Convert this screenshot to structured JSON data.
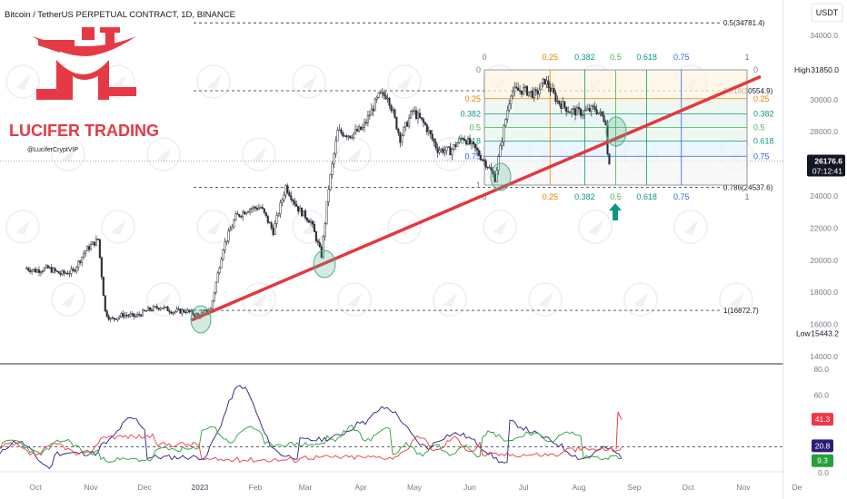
{
  "header": {
    "title": "Bitcoin / TetherUS PERPETUAL CONTRACT, 1D, BINANCE",
    "currency": "USDT"
  },
  "branding": {
    "logo_text": "LUCIFER TRADING",
    "handle": "@LuciferCryptVIP"
  },
  "colors": {
    "candle": "#2a2e39",
    "trendline": "#e0393e",
    "fib0": "#787b86",
    "fib025": "#f57c00",
    "fib0382": "#089981",
    "fib05": "#4caf50",
    "fib0618": "#089981",
    "fib075": "#2962ff",
    "fib1": "#787b86",
    "ellipse": "#4caf87",
    "arrow": "#089981",
    "dmi_plus": "#26a03a",
    "dmi_minus": "#f23645",
    "adx": "#2a1e7a"
  },
  "price_axis": {
    "ticks": [
      "34000.0",
      "32000.0",
      "30000.0",
      "28000.0",
      "26000.0",
      "24000.0",
      "22000.0",
      "20000.0",
      "18000.0",
      "16000.0",
      "14000.0"
    ],
    "high_label": "High",
    "high_value": "31850.0",
    "low_label": "Low",
    "low_value": "15443.2",
    "last_price": "26176.6",
    "countdown": "07:12:41"
  },
  "indicator_axis": {
    "ticks": [
      "80.0",
      "60.0",
      "40.0",
      "20.0",
      "0.0"
    ],
    "badges": [
      {
        "label": "41.3",
        "color": "#f23645"
      },
      {
        "label": "20.8",
        "color": "#2a1e7a"
      },
      {
        "label": "9.3",
        "color": "#26a03a"
      }
    ]
  },
  "time_axis": {
    "labels": [
      "Oct",
      "Nov",
      "Dec",
      "2023",
      "Feb",
      "Mar",
      "Apr",
      "May",
      "Jun",
      "Jul",
      "Aug",
      "Sep",
      "Oct",
      "Nov",
      "De"
    ]
  },
  "levels": [
    {
      "label": "0.5(34781.4)",
      "price": 34781.4
    },
    {
      "label": "0.618(30554.9)",
      "price": 30554.9
    },
    {
      "label": "0.786(24537.6)",
      "price": 24537.6
    },
    {
      "label": "1(16872.7)",
      "price": 16872.7
    }
  ],
  "fib_retracement": {
    "labels_top": [
      "0",
      "0.25",
      "0.382",
      "0.5",
      "0.618",
      "0.75",
      "1"
    ],
    "labels_bottom": [
      "0",
      "0.25",
      "0.382",
      "0.5",
      "0.618",
      "0.75",
      "1"
    ],
    "labels_left": [
      "0",
      "0.25",
      "0.382",
      "0.5",
      "0.618",
      "0.75",
      "1"
    ],
    "labels_right": [
      "0",
      "0.25",
      "0.382",
      "0.5",
      "0.618",
      "0.75"
    ]
  },
  "chart_data": {
    "type": "candlestick",
    "symbol": "BTCUSDT.P",
    "interval": "1D",
    "ylim": [
      14000,
      34500
    ],
    "price_series": [
      [
        "2022-09-26",
        19500
      ],
      [
        "2022-10-01",
        19350
      ],
      [
        "2022-10-08",
        19500
      ],
      [
        "2022-10-15",
        19150
      ],
      [
        "2022-10-22",
        19300
      ],
      [
        "2022-10-29",
        20600
      ],
      [
        "2022-11-05",
        21300
      ],
      [
        "2022-11-09",
        16800
      ],
      [
        "2022-11-12",
        16300
      ],
      [
        "2022-11-19",
        16600
      ],
      [
        "2022-11-26",
        16500
      ],
      [
        "2022-12-03",
        16900
      ],
      [
        "2022-12-10",
        17100
      ],
      [
        "2022-12-17",
        16800
      ],
      [
        "2022-12-24",
        16850
      ],
      [
        "2022-12-31",
        16550
      ],
      [
        "2023-01-07",
        16950
      ],
      [
        "2023-01-14",
        20800
      ],
      [
        "2023-01-21",
        22700
      ],
      [
        "2023-01-28",
        23200
      ],
      [
        "2023-02-04",
        23300
      ],
      [
        "2023-02-11",
        21800
      ],
      [
        "2023-02-18",
        24600
      ],
      [
        "2023-02-25",
        23200
      ],
      [
        "2023-03-04",
        22400
      ],
      [
        "2023-03-10",
        20300
      ],
      [
        "2023-03-14",
        24500
      ],
      [
        "2023-03-19",
        28000
      ],
      [
        "2023-03-26",
        27800
      ],
      [
        "2023-04-02",
        28200
      ],
      [
        "2023-04-11",
        30200
      ],
      [
        "2023-04-16",
        30300
      ],
      [
        "2023-04-23",
        27600
      ],
      [
        "2023-04-30",
        29300
      ],
      [
        "2023-05-07",
        28400
      ],
      [
        "2023-05-14",
        26900
      ],
      [
        "2023-05-21",
        26800
      ],
      [
        "2023-05-28",
        27700
      ],
      [
        "2023-06-04",
        26900
      ],
      [
        "2023-06-11",
        25900
      ],
      [
        "2023-06-15",
        25100
      ],
      [
        "2023-06-21",
        28800
      ],
      [
        "2023-06-24",
        30500
      ],
      [
        "2023-07-01",
        30600
      ],
      [
        "2023-07-08",
        30300
      ],
      [
        "2023-07-13",
        31200
      ],
      [
        "2023-07-20",
        29900
      ],
      [
        "2023-07-27",
        29300
      ],
      [
        "2023-08-03",
        29200
      ],
      [
        "2023-08-10",
        29450
      ],
      [
        "2023-08-16",
        28700
      ],
      [
        "2023-08-17",
        26600
      ],
      [
        "2023-08-18",
        26176.6
      ]
    ],
    "indicator": {
      "name": "DMI",
      "ylim": [
        0,
        80
      ],
      "adx_last": 20.8,
      "plus_di_last": 9.3,
      "minus_di_last": 41.3
    },
    "trendline": {
      "start": [
        "2022-12-28",
        16300
      ],
      "end": [
        "2023-11-10",
        31400
      ]
    }
  }
}
